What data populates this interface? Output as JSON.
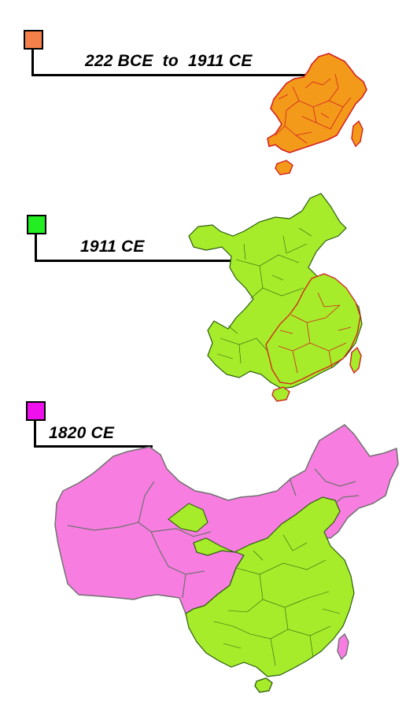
{
  "legend": [
    {
      "id": "qin-to-qing",
      "label": "222 BCE  to  1911 CE",
      "color": "#f4814a"
    },
    {
      "id": "1911",
      "label": "1911 CE",
      "color": "#22ee22"
    },
    {
      "id": "1820",
      "label": "1820 CE",
      "color": "#ee11ee"
    }
  ],
  "colors": {
    "core_fill": "#f39a1a",
    "core_border": "#d42020",
    "proper_fill": "#a6ec2a",
    "proper_border": "#2e5c10",
    "frontier_fill": "#f77ee0",
    "frontier_border": "#707070",
    "inner_border_red": "#d42020"
  }
}
